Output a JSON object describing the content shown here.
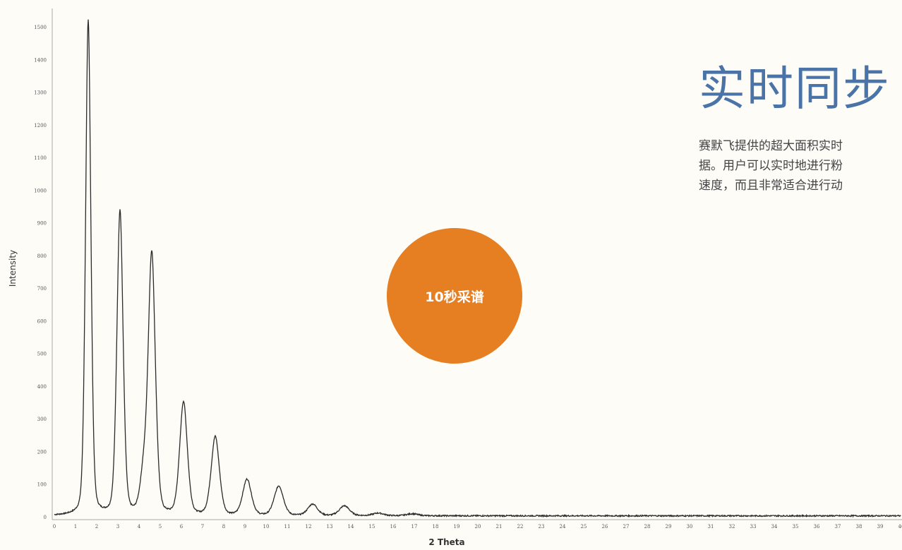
{
  "chart_data": {
    "type": "line",
    "xlabel": "2 Theta",
    "ylabel": "Intensity",
    "xlim": [
      0,
      40
    ],
    "ylim": [
      0,
      1500
    ],
    "x_ticks": [
      0,
      1,
      2,
      3,
      4,
      5,
      6,
      7,
      8,
      9,
      10,
      11,
      12,
      13,
      14,
      15,
      16,
      17,
      18,
      19,
      20,
      21,
      22,
      23,
      24,
      25,
      26,
      27,
      28,
      29,
      30,
      31,
      32,
      33,
      34,
      35,
      36,
      37,
      38,
      39,
      40
    ],
    "y_ticks": [
      0,
      100,
      200,
      300,
      400,
      500,
      600,
      700,
      800,
      900,
      1000,
      1100,
      1200,
      1300,
      1400,
      1500
    ],
    "grid": false,
    "series": [
      {
        "peaks": [
          {
            "x": 1.6,
            "y": 1515
          },
          {
            "x": 3.1,
            "y": 930
          },
          {
            "x": 4.2,
            "y": 105
          },
          {
            "x": 4.6,
            "y": 800
          },
          {
            "x": 6.1,
            "y": 345
          },
          {
            "x": 7.6,
            "y": 240
          },
          {
            "x": 9.1,
            "y": 110
          },
          {
            "x": 10.6,
            "y": 90
          },
          {
            "x": 12.2,
            "y": 35
          },
          {
            "x": 13.7,
            "y": 30
          },
          {
            "x": 15.3,
            "y": 8
          },
          {
            "x": 16.9,
            "y": 6
          }
        ],
        "baseline": 3
      }
    ]
  },
  "headline": "实时同步",
  "description_lines": [
    "赛默飞提供的超大面积实时",
    "据。用户可以实时地进行粉",
    "速度，而且非常适合进行动"
  ],
  "badge": {
    "label": "10秒采谱",
    "color": "#e67e22"
  },
  "colors": {
    "line": "#2b2b2b",
    "headline": "#4a73a8",
    "background": "#fdfcf7"
  }
}
